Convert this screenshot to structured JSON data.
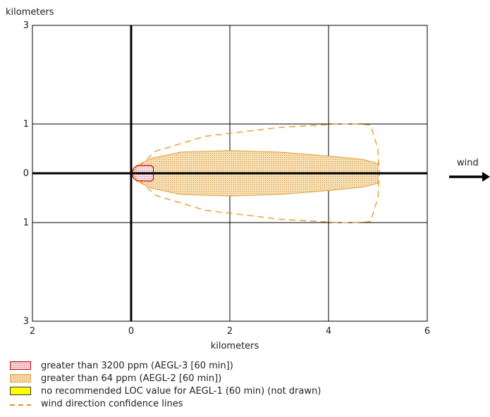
{
  "chart_data": {
    "type": "area",
    "xlabel": "kilometers",
    "ylabel": "kilometers",
    "xlim": [
      -2,
      6
    ],
    "ylim": [
      -3,
      3
    ],
    "x_ticks": [
      {
        "value": -2,
        "label": "2"
      },
      {
        "value": 0,
        "label": "0"
      },
      {
        "value": 2,
        "label": "2"
      },
      {
        "value": 4,
        "label": "4"
      },
      {
        "value": 6,
        "label": "6"
      }
    ],
    "y_ticks": [
      {
        "value": 3,
        "label": "3"
      },
      {
        "value": 1,
        "label": "1"
      },
      {
        "value": 0,
        "label": "0"
      },
      {
        "value": -1,
        "label": "1"
      },
      {
        "value": -3,
        "label": "3"
      }
    ],
    "grid": true,
    "wind_label": "wind",
    "wind_direction": "east",
    "zones": [
      {
        "name": "greater than 3200 ppm (AEGL-3 [60 min])",
        "color": "#c00000",
        "fill": "#f7e0e4",
        "outline": [
          [
            0.0,
            0.0
          ],
          [
            0.05,
            0.1
          ],
          [
            0.12,
            0.15
          ],
          [
            0.4,
            0.16
          ],
          [
            0.45,
            0.12
          ],
          [
            0.45,
            -0.12
          ],
          [
            0.4,
            -0.16
          ],
          [
            0.12,
            -0.15
          ],
          [
            0.05,
            -0.1
          ]
        ]
      },
      {
        "name": "greater than 64 ppm (AEGL-2 [60 min])",
        "color": "#e0a040",
        "fill": "#f6ddb0",
        "outline": [
          [
            0.0,
            0.0
          ],
          [
            0.1,
            0.15
          ],
          [
            0.4,
            0.3
          ],
          [
            1.0,
            0.43
          ],
          [
            2.0,
            0.46
          ],
          [
            3.0,
            0.43
          ],
          [
            4.0,
            0.35
          ],
          [
            4.7,
            0.28
          ],
          [
            5.0,
            0.2
          ],
          [
            5.0,
            -0.2
          ],
          [
            4.7,
            -0.28
          ],
          [
            4.0,
            -0.35
          ],
          [
            3.0,
            -0.43
          ],
          [
            2.0,
            -0.46
          ],
          [
            1.0,
            -0.43
          ],
          [
            0.4,
            -0.3
          ],
          [
            0.1,
            -0.15
          ]
        ]
      }
    ],
    "confidence_lines": {
      "name": "wind direction confidence lines",
      "color": "#e69520",
      "upper": [
        [
          0.0,
          0.0
        ],
        [
          0.5,
          0.45
        ],
        [
          1.5,
          0.75
        ],
        [
          3.0,
          0.93
        ],
        [
          4.2,
          1.0
        ],
        [
          4.5,
          1.0
        ]
      ],
      "lower": [
        [
          0.0,
          0.0
        ],
        [
          0.5,
          -0.45
        ],
        [
          1.5,
          -0.75
        ],
        [
          3.0,
          -0.93
        ],
        [
          4.2,
          -1.0
        ],
        [
          4.5,
          -1.0
        ]
      ],
      "arc": [
        [
          4.5,
          1.0
        ],
        [
          4.85,
          0.98
        ],
        [
          5.0,
          0.5
        ],
        [
          5.03,
          0.0
        ],
        [
          5.0,
          -0.5
        ],
        [
          4.85,
          -0.98
        ],
        [
          4.5,
          -1.0
        ]
      ]
    },
    "legend": [
      {
        "label": "greater than 3200 ppm (AEGL-3 [60 min])",
        "swatch": "red-dotted"
      },
      {
        "label": "greater than 64 ppm (AEGL-2 [60 min])",
        "swatch": "orange-dotted"
      },
      {
        "label": "no recommended LOC value for AEGL-1 (60 min) (not drawn)",
        "swatch": "yellow"
      },
      {
        "label": "wind direction confidence lines",
        "swatch": "orange-dash"
      }
    ],
    "legend_position": "bottom-left"
  }
}
